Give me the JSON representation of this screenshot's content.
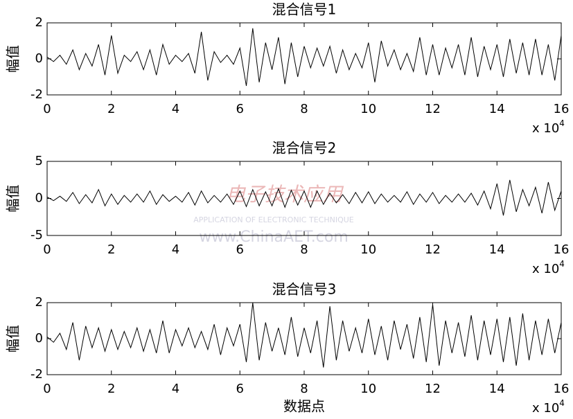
{
  "chart_data": [
    {
      "type": "line",
      "title": "混合信号1",
      "ylabel": "幅值",
      "x_scale_label": {
        "base": "x 10",
        "exponent": "4"
      },
      "x": [
        0,
        0.2,
        0.4,
        0.6,
        0.8,
        1,
        1.2,
        1.4,
        1.6,
        1.8,
        2,
        2.2,
        2.4,
        2.6,
        2.8,
        3,
        3.2,
        3.4,
        3.6,
        3.8,
        4,
        4.2,
        4.4,
        4.6,
        4.8,
        5,
        5.2,
        5.4,
        5.6,
        5.8,
        6,
        6.2,
        6.4,
        6.6,
        6.8,
        7,
        7.2,
        7.4,
        7.6,
        7.8,
        8,
        8.2,
        8.4,
        8.6,
        8.8,
        9,
        9.2,
        9.4,
        9.6,
        9.8,
        10,
        10.2,
        10.4,
        10.6,
        10.8,
        11,
        11.2,
        11.4,
        11.6,
        11.8,
        12,
        12.2,
        12.4,
        12.6,
        12.8,
        13,
        13.2,
        13.4,
        13.6,
        13.8,
        14,
        14.2,
        14.4,
        14.6,
        14.8,
        15,
        15.2,
        15.4,
        15.6,
        15.8,
        16
      ],
      "series": [
        {
          "color": "#000000",
          "values": [
            0.1,
            -0.15,
            0.2,
            -0.3,
            0.5,
            -0.6,
            0.3,
            -0.4,
            0.8,
            -0.9,
            1.3,
            -0.8,
            0.2,
            -0.15,
            0.4,
            -0.6,
            0.5,
            -0.9,
            0.8,
            -0.3,
            0.2,
            -0.15,
            0.3,
            -0.8,
            1.5,
            -1.2,
            0.4,
            -0.2,
            0.2,
            -0.3,
            0.6,
            -1.5,
            1.7,
            -1.3,
            0.9,
            -0.6,
            1.2,
            -1.4,
            0.9,
            -1.0,
            0.7,
            -0.5,
            0.6,
            -0.4,
            0.7,
            -0.8,
            0.5,
            -0.6,
            0.3,
            -0.5,
            0.9,
            -1.3,
            1.0,
            -0.4,
            0.5,
            -0.6,
            0.3,
            -0.7,
            1.2,
            -0.9,
            0.8,
            -0.9,
            0.6,
            -0.5,
            0.8,
            -0.9,
            1.2,
            -1.0,
            0.7,
            -0.6,
            0.8,
            -1.0,
            1.1,
            -0.8,
            0.9,
            -0.9,
            1.1,
            -0.9,
            0.8,
            -1.2,
            1.3
          ]
        }
      ],
      "xlim": [
        0,
        16
      ],
      "xticks": [
        0,
        2,
        4,
        6,
        8,
        10,
        12,
        14,
        16
      ],
      "ylim": [
        -2,
        2
      ],
      "yticks": [
        -2,
        0,
        2
      ]
    },
    {
      "type": "line",
      "title": "混合信号2",
      "ylabel": "幅值",
      "x_scale_label": {
        "base": "x 10",
        "exponent": "4"
      },
      "x": [
        0,
        0.2,
        0.4,
        0.6,
        0.8,
        1,
        1.2,
        1.4,
        1.6,
        1.8,
        2,
        2.2,
        2.4,
        2.6,
        2.8,
        3,
        3.2,
        3.4,
        3.6,
        3.8,
        4,
        4.2,
        4.4,
        4.6,
        4.8,
        5,
        5.2,
        5.4,
        5.6,
        5.8,
        6,
        6.2,
        6.4,
        6.6,
        6.8,
        7,
        7.2,
        7.4,
        7.6,
        7.8,
        8,
        8.2,
        8.4,
        8.6,
        8.8,
        9,
        9.2,
        9.4,
        9.6,
        9.8,
        10,
        10.2,
        10.4,
        10.6,
        10.8,
        11,
        11.2,
        11.4,
        11.6,
        11.8,
        12,
        12.2,
        12.4,
        12.6,
        12.8,
        13,
        13.2,
        13.4,
        13.6,
        13.8,
        14,
        14.2,
        14.4,
        14.6,
        14.8,
        15,
        15.2,
        15.4,
        15.6,
        15.8,
        16
      ],
      "series": [
        {
          "color": "#000000",
          "values": [
            0.2,
            -0.3,
            0.3,
            -0.4,
            0.8,
            -0.7,
            0.5,
            -0.6,
            1.2,
            -1.0,
            0.6,
            -0.8,
            0.4,
            -0.5,
            0.6,
            -0.5,
            1.0,
            -0.8,
            0.5,
            -0.4,
            0.3,
            -0.5,
            0.8,
            -0.9,
            1.0,
            -0.6,
            0.4,
            -0.5,
            0.6,
            -0.8,
            1.0,
            -1.1,
            1.2,
            -1.0,
            0.9,
            -1.0,
            1.3,
            -1.2,
            1.1,
            -0.9,
            1.0,
            -1.2,
            1.0,
            -0.8,
            0.7,
            -0.6,
            0.5,
            -0.7,
            0.8,
            -0.6,
            0.9,
            -0.7,
            0.6,
            -0.5,
            0.4,
            -0.5,
            0.9,
            -0.8,
            0.6,
            -0.5,
            0.8,
            -0.7,
            0.4,
            -0.5,
            0.6,
            -0.5,
            0.7,
            -0.9,
            1.0,
            -1.4,
            2.0,
            -2.3,
            2.5,
            -1.8,
            1.2,
            -1.0,
            1.5,
            -2.0,
            2.2,
            -1.6,
            1.0
          ]
        }
      ],
      "xlim": [
        0,
        16
      ],
      "xticks": [
        0,
        2,
        4,
        6,
        8,
        10,
        12,
        14,
        16
      ],
      "ylim": [
        -5,
        5
      ],
      "yticks": [
        -5,
        0,
        5
      ]
    },
    {
      "type": "line",
      "title": "混合信号3",
      "ylabel": "幅值",
      "xlabel": "数据点",
      "x_scale_label": {
        "base": "x 10",
        "exponent": "4"
      },
      "x": [
        0,
        0.2,
        0.4,
        0.6,
        0.8,
        1,
        1.2,
        1.4,
        1.6,
        1.8,
        2,
        2.2,
        2.4,
        2.6,
        2.8,
        3,
        3.2,
        3.4,
        3.6,
        3.8,
        4,
        4.2,
        4.4,
        4.6,
        4.8,
        5,
        5.2,
        5.4,
        5.6,
        5.8,
        6,
        6.2,
        6.4,
        6.6,
        6.8,
        7,
        7.2,
        7.4,
        7.6,
        7.8,
        8,
        8.2,
        8.4,
        8.6,
        8.8,
        9,
        9.2,
        9.4,
        9.6,
        9.8,
        10,
        10.2,
        10.4,
        10.6,
        10.8,
        11,
        11.2,
        11.4,
        11.6,
        11.8,
        12,
        12.2,
        12.4,
        12.6,
        12.8,
        13,
        13.2,
        13.4,
        13.6,
        13.8,
        14,
        14.2,
        14.4,
        14.6,
        14.8,
        15,
        15.2,
        15.4,
        15.6,
        15.8,
        16
      ],
      "series": [
        {
          "color": "#000000",
          "values": [
            0.1,
            -0.2,
            0.3,
            -0.6,
            0.9,
            -1.2,
            0.7,
            -0.5,
            0.6,
            -0.7,
            0.5,
            -0.6,
            0.4,
            -0.5,
            0.6,
            -0.7,
            0.5,
            -0.8,
            1.0,
            -0.8,
            0.5,
            -0.4,
            0.6,
            -0.5,
            0.4,
            -0.6,
            0.8,
            -0.9,
            0.6,
            -0.4,
            0.8,
            -1.3,
            2.0,
            -1.2,
            0.9,
            -0.7,
            0.6,
            -0.9,
            1.2,
            -1.0,
            0.6,
            -0.8,
            1.0,
            -1.6,
            1.8,
            -1.2,
            1.0,
            -0.7,
            0.6,
            -0.8,
            1.1,
            -0.9,
            0.7,
            -1.2,
            1.0,
            -0.6,
            0.8,
            -1.1,
            1.2,
            -1.3,
            1.9,
            -1.5,
            1.0,
            -0.8,
            0.9,
            -1.0,
            1.3,
            -1.2,
            1.0,
            -0.9,
            1.1,
            -1.3,
            1.2,
            -1.5,
            1.4,
            -1.2,
            1.0,
            -0.9,
            1.1,
            -0.8,
            0.9
          ]
        }
      ],
      "xlim": [
        0,
        16
      ],
      "xticks": [
        0,
        2,
        4,
        6,
        8,
        10,
        12,
        14,
        16
      ],
      "ylim": [
        -2,
        2
      ],
      "yticks": [
        -2,
        0,
        2
      ]
    }
  ],
  "watermark": {
    "logo": "电子技术应用",
    "line1": "APPLICATION OF ELECTRONIC TECHNIQUE",
    "line2": "www.ChinaAET.com"
  }
}
